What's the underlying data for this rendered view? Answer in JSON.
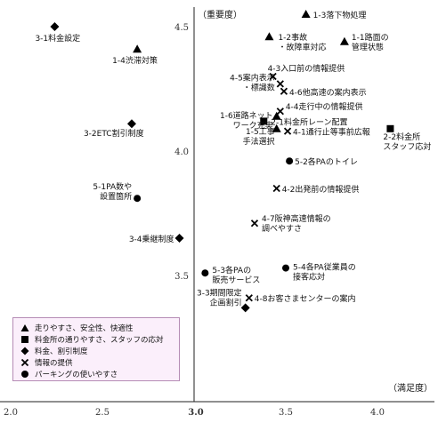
{
  "chart_data": {
    "type": "scatter",
    "xlabel": "（満足度）",
    "ylabel": "（重要度）",
    "xlim": [
      2.0,
      4.15
    ],
    "ylim": [
      3.15,
      4.6
    ],
    "x_ticks": [
      "2.0",
      "2.5",
      "3.0",
      "3.5",
      "4.0"
    ],
    "y_ticks": [
      "4.5",
      "4.0",
      "3.5"
    ],
    "x_ref": 3.0,
    "grid": false,
    "legend": {
      "placement": "bottom-left",
      "entries": [
        {
          "symbol": "triangle",
          "label": "走りやすさ、安全性、快適性"
        },
        {
          "symbol": "square",
          "label": "料金所の通りやすさ、スタッフの応対"
        },
        {
          "symbol": "diamond",
          "label": "料金、割引制度"
        },
        {
          "symbol": "cross",
          "label": "情報の提供"
        },
        {
          "symbol": "circle",
          "label": "パーキングの使いやすさ"
        }
      ]
    },
    "points": [
      {
        "symbol": "triangle",
        "x": 3.61,
        "y": 4.55,
        "label": [
          "1-3落下物処理"
        ]
      },
      {
        "symbol": "triangle",
        "x": 3.41,
        "y": 4.46,
        "label": [
          "1-2事故",
          "・故障車対応"
        ]
      },
      {
        "symbol": "triangle",
        "x": 3.82,
        "y": 4.44,
        "label": [
          "1-1路面の",
          "管理状態"
        ]
      },
      {
        "symbol": "triangle",
        "x": 2.69,
        "y": 4.41,
        "label": [
          "1-4渋滞対策"
        ]
      },
      {
        "symbol": "triangle",
        "x": 3.45,
        "y": 4.14,
        "label": [
          "1-6道路ネット",
          "ワーク充実"
        ]
      },
      {
        "symbol": "triangle",
        "x": 3.45,
        "y": 4.09,
        "label": [
          "1-5工事",
          "手法選択"
        ]
      },
      {
        "symbol": "diamond",
        "x": 2.24,
        "y": 4.5,
        "label": [
          "3-1料金設定"
        ]
      },
      {
        "symbol": "diamond",
        "x": 2.66,
        "y": 4.11,
        "label": [
          "3-2ETC割引制度"
        ]
      },
      {
        "symbol": "diamond",
        "x": 2.92,
        "y": 3.65,
        "label": [
          "3-4乗継制度"
        ]
      },
      {
        "symbol": "diamond",
        "x": 3.28,
        "y": 3.37,
        "label": [
          "3-3期間限定",
          "企画割引"
        ]
      },
      {
        "symbol": "square",
        "x": 3.38,
        "y": 4.12,
        "label": [
          "2-1料金所レーン配置"
        ]
      },
      {
        "symbol": "square",
        "x": 4.07,
        "y": 4.09,
        "label": [
          "2-2料金所",
          "スタッフ応対"
        ]
      },
      {
        "symbol": "cross",
        "x": 3.43,
        "y": 4.3,
        "label": [
          "4-3入口前の情報提供"
        ]
      },
      {
        "symbol": "cross",
        "x": 3.47,
        "y": 4.27,
        "label": [
          "4-5案内表示",
          "・標識数"
        ]
      },
      {
        "symbol": "cross",
        "x": 3.49,
        "y": 4.24,
        "label": [
          "4-6他高速の案内表示"
        ]
      },
      {
        "symbol": "cross",
        "x": 3.47,
        "y": 4.16,
        "label": [
          "4-4走行中の情報提供"
        ]
      },
      {
        "symbol": "cross",
        "x": 3.51,
        "y": 4.08,
        "label": [
          "4-1通行止等事前広報"
        ]
      },
      {
        "symbol": "cross",
        "x": 3.45,
        "y": 3.85,
        "label": [
          "4-2出発前の情報提供"
        ]
      },
      {
        "symbol": "cross",
        "x": 3.33,
        "y": 3.71,
        "label": [
          "4-7阪神高速情報の",
          "調べやすさ"
        ]
      },
      {
        "symbol": "cross",
        "x": 3.3,
        "y": 3.41,
        "label": [
          "4-8お客さまセンターの案内"
        ]
      },
      {
        "symbol": "circle",
        "x": 3.52,
        "y": 3.96,
        "label": [
          "5-2各PAのトイレ"
        ]
      },
      {
        "symbol": "circle",
        "x": 2.69,
        "y": 3.81,
        "label": [
          "5-1PA数や",
          "設置箇所"
        ]
      },
      {
        "symbol": "circle",
        "x": 3.5,
        "y": 3.53,
        "label": [
          "5-4各PA従業員の",
          "接客応対"
        ]
      },
      {
        "symbol": "circle",
        "x": 3.06,
        "y": 3.51,
        "label": [
          "5-3各PAの",
          "販売サービス"
        ]
      }
    ]
  }
}
